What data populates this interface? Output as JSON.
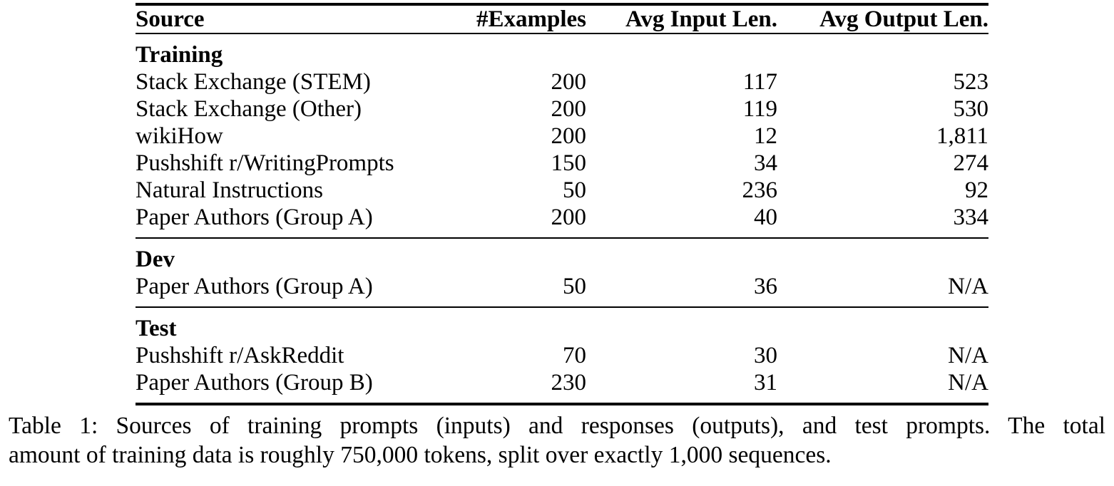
{
  "table": {
    "columns": [
      {
        "key": "source",
        "label": "Source",
        "align": "left"
      },
      {
        "key": "examples",
        "label": "#Examples",
        "align": "right"
      },
      {
        "key": "avg-input-len",
        "label": "Avg Input Len.",
        "align": "right"
      },
      {
        "key": "avg-output-len",
        "label": "Avg Output Len.",
        "align": "right"
      }
    ],
    "sections": [
      {
        "label": "Training",
        "rows": [
          [
            "Stack Exchange (STEM)",
            "200",
            "117",
            "523"
          ],
          [
            "Stack Exchange (Other)",
            "200",
            "119",
            "530"
          ],
          [
            "wikiHow",
            "200",
            "12",
            "1,811"
          ],
          [
            "Pushshift r/WritingPrompts",
            "150",
            "34",
            "274"
          ],
          [
            "Natural Instructions",
            "50",
            "236",
            "92"
          ],
          [
            "Paper Authors (Group A)",
            "200",
            "40",
            "334"
          ]
        ]
      },
      {
        "label": "Dev",
        "rows": [
          [
            "Paper Authors (Group A)",
            "50",
            "36",
            "N/A"
          ]
        ]
      },
      {
        "label": "Test",
        "rows": [
          [
            "Pushshift r/AskReddit",
            "70",
            "30",
            "N/A"
          ],
          [
            "Paper Authors (Group B)",
            "230",
            "31",
            "N/A"
          ]
        ]
      }
    ]
  },
  "caption": {
    "line1": "Table 1: Sources of training prompts (inputs) and responses (outputs), and test prompts. The total",
    "line2": "amount of training data is roughly 750,000 tokens, split over exactly 1,000 sequences."
  },
  "colors": {
    "text": "#000000",
    "background": "#ffffff",
    "rule": "#000000"
  }
}
